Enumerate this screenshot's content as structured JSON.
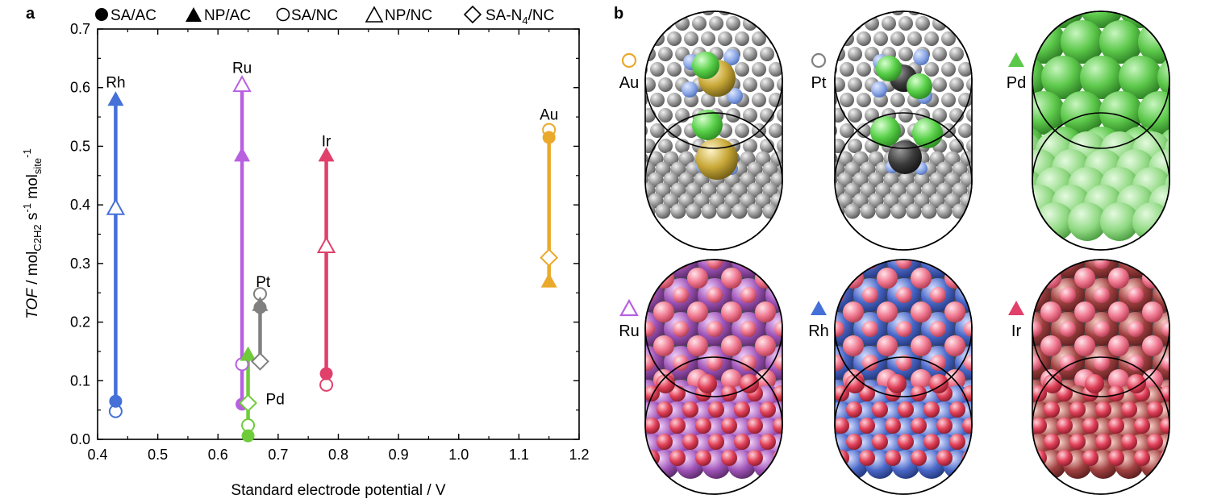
{
  "panels": {
    "a": {
      "label": "a"
    },
    "b": {
      "label": "b"
    }
  },
  "legend": {
    "items": [
      {
        "key": "sa_ac",
        "symbol": "filled-circle",
        "label": "SA/AC"
      },
      {
        "key": "np_ac",
        "symbol": "filled-triangle",
        "label": "NP/AC"
      },
      {
        "key": "sa_nc",
        "symbol": "open-circle",
        "label": "SA/NC"
      },
      {
        "key": "np_nc",
        "symbol": "open-triangle",
        "label": "NP/NC"
      },
      {
        "key": "san4_nc",
        "symbol": "open-diamond",
        "label_pre": "SA-N",
        "label_sub": "4",
        "label_post": "/NC"
      }
    ]
  },
  "chart_data": {
    "type": "scatter",
    "xlabel": "Standard electrode potential / V",
    "ylabel": {
      "pre": "TOF",
      "mid": " / mol",
      "sub1": "C2H2",
      "mid2": " s",
      "sup1": "-1",
      "mid3": " mol",
      "sub2": "site",
      "sup2": "-1"
    },
    "xlim": [
      0.4,
      1.2
    ],
    "ylim": [
      0.0,
      0.7
    ],
    "xticks": [
      "0.4",
      "0.5",
      "0.6",
      "0.7",
      "0.8",
      "0.9",
      "1.0",
      "1.1",
      "1.2"
    ],
    "yticks": [
      "0.0",
      "0.1",
      "0.2",
      "0.3",
      "0.4",
      "0.5",
      "0.6",
      "0.7"
    ],
    "grid": false,
    "legend_position": "top",
    "series": [
      {
        "name": "Rh",
        "color": "#4470d8",
        "x": 0.43,
        "line": [
          0.065,
          0.58
        ],
        "points": [
          {
            "kind": "sa_ac",
            "x": 0.43,
            "y": 0.065
          },
          {
            "kind": "np_ac",
            "x": 0.43,
            "y": 0.58
          },
          {
            "kind": "sa_nc",
            "x": 0.43,
            "y": 0.048
          },
          {
            "kind": "np_nc",
            "x": 0.43,
            "y": 0.395
          }
        ]
      },
      {
        "name": "Ru",
        "color": "#b860e0",
        "x": 0.64,
        "line": [
          0.06,
          0.61
        ],
        "points": [
          {
            "kind": "sa_ac",
            "x": 0.64,
            "y": 0.06
          },
          {
            "kind": "np_ac",
            "x": 0.64,
            "y": 0.485
          },
          {
            "kind": "sa_nc",
            "x": 0.64,
            "y": 0.128
          },
          {
            "kind": "np_nc",
            "x": 0.64,
            "y": 0.605
          }
        ]
      },
      {
        "name": "Pd",
        "color": "#6ecc3a",
        "x": 0.65,
        "line": [
          0.006,
          0.145
        ],
        "points": [
          {
            "kind": "sa_ac",
            "x": 0.65,
            "y": 0.006
          },
          {
            "kind": "np_ac",
            "x": 0.65,
            "y": 0.145
          },
          {
            "kind": "sa_nc",
            "x": 0.65,
            "y": 0.024
          },
          {
            "kind": "san4_nc",
            "x": 0.65,
            "y": 0.062
          }
        ]
      },
      {
        "name": "Pt",
        "color": "#808080",
        "x": 0.67,
        "line": [
          0.133,
          0.23
        ],
        "points": [
          {
            "kind": "np_ac",
            "x": 0.67,
            "y": 0.23
          },
          {
            "kind": "sa_ac",
            "x": 0.67,
            "y": 0.225
          },
          {
            "kind": "sa_nc",
            "x": 0.67,
            "y": 0.248
          },
          {
            "kind": "san4_nc",
            "x": 0.67,
            "y": 0.133
          }
        ]
      },
      {
        "name": "Ir",
        "color": "#e0406a",
        "x": 0.78,
        "line": [
          0.112,
          0.485
        ],
        "points": [
          {
            "kind": "sa_ac",
            "x": 0.78,
            "y": 0.112
          },
          {
            "kind": "np_ac",
            "x": 0.78,
            "y": 0.485
          },
          {
            "kind": "sa_nc",
            "x": 0.78,
            "y": 0.093
          },
          {
            "kind": "np_nc",
            "x": 0.78,
            "y": 0.33
          }
        ]
      },
      {
        "name": "Au",
        "color": "#eaa92a",
        "x": 1.15,
        "line": [
          0.27,
          0.515
        ],
        "points": [
          {
            "kind": "sa_ac",
            "x": 1.15,
            "y": 0.515
          },
          {
            "kind": "np_ac",
            "x": 1.15,
            "y": 0.27
          },
          {
            "kind": "sa_nc",
            "x": 1.15,
            "y": 0.528
          },
          {
            "kind": "san4_nc",
            "x": 1.15,
            "y": 0.31
          }
        ]
      }
    ],
    "annotations": [
      {
        "text": "Rh",
        "x": 0.43,
        "y": 0.6
      },
      {
        "text": "Ru",
        "x": 0.64,
        "y": 0.625
      },
      {
        "text": "Ir",
        "x": 0.78,
        "y": 0.5
      },
      {
        "text": "Au",
        "x": 1.15,
        "y": 0.545
      },
      {
        "text": "Pt",
        "x": 0.675,
        "y": 0.26
      },
      {
        "text": "Pd",
        "x": 0.695,
        "y": 0.06
      }
    ]
  },
  "structures": {
    "items": [
      {
        "label": "Au",
        "symbol": "open-circle",
        "color": "#eaa92a",
        "type": "single-atom",
        "center_color": "#c8a838"
      },
      {
        "label": "Pt",
        "symbol": "open-circle",
        "color": "#808080",
        "type": "single-atom",
        "center_color": "#3c3c3c"
      },
      {
        "label": "Pd",
        "symbol": "filled-triangle",
        "color": "#5cc84a",
        "type": "nanoparticle",
        "base_color": "#5cc84a"
      },
      {
        "label": "Ru",
        "symbol": "open-triangle",
        "color": "#b860e0",
        "type": "nanoparticle-adsorbed",
        "base_color": "#a054b8"
      },
      {
        "label": "Rh",
        "symbol": "filled-triangle",
        "color": "#4470d8",
        "type": "nanoparticle-adsorbed",
        "base_color": "#4a68c8"
      },
      {
        "label": "Ir",
        "symbol": "filled-triangle",
        "color": "#e0406a",
        "type": "nanoparticle-adsorbed",
        "base_color": "#a04040"
      }
    ]
  }
}
